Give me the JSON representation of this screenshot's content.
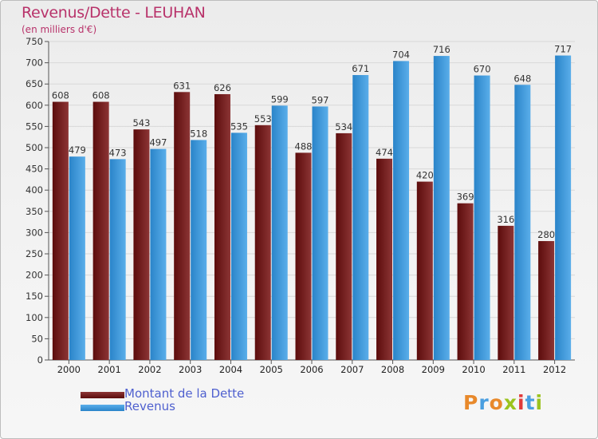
{
  "header": {
    "title": "Revenus/Dette - LEUHAN",
    "unit": "(en milliers d'€)"
  },
  "legend": {
    "items": [
      {
        "label": "Montant de la Dette",
        "color": "#5c0c0c"
      },
      {
        "label": "Revenus",
        "color": "#4a9fe0"
      }
    ]
  },
  "logo": {
    "text": "Proxiti",
    "colors": [
      "#e8892b",
      "#4a9fe0",
      "#e8892b",
      "#9bc31e",
      "#e03a3a",
      "#4a9fe0",
      "#9bc31e"
    ]
  },
  "colors": {
    "debt_dark": "#5c0c0c",
    "debt_light": "#8c3535",
    "rev_dark": "#2a84c9",
    "rev_light": "#5aaeea",
    "accent": "#b8326a"
  },
  "chart_data": {
    "type": "bar",
    "title": "Revenus/Dette - LEUHAN",
    "ylabel": "(en milliers d'€)",
    "ylim": [
      0,
      750
    ],
    "ytick_step": 50,
    "grid": true,
    "categories": [
      "2000",
      "2001",
      "2002",
      "2003",
      "2004",
      "2005",
      "2006",
      "2007",
      "2008",
      "2009",
      "2010",
      "2011",
      "2012"
    ],
    "series": [
      {
        "name": "Montant de la Dette",
        "values": [
          608,
          608,
          543,
          631,
          626,
          553,
          488,
          534,
          474,
          420,
          369,
          316,
          280
        ]
      },
      {
        "name": "Revenus",
        "values": [
          479,
          473,
          497,
          518,
          535,
          599,
          597,
          671,
          704,
          716,
          670,
          648,
          717
        ]
      }
    ]
  }
}
